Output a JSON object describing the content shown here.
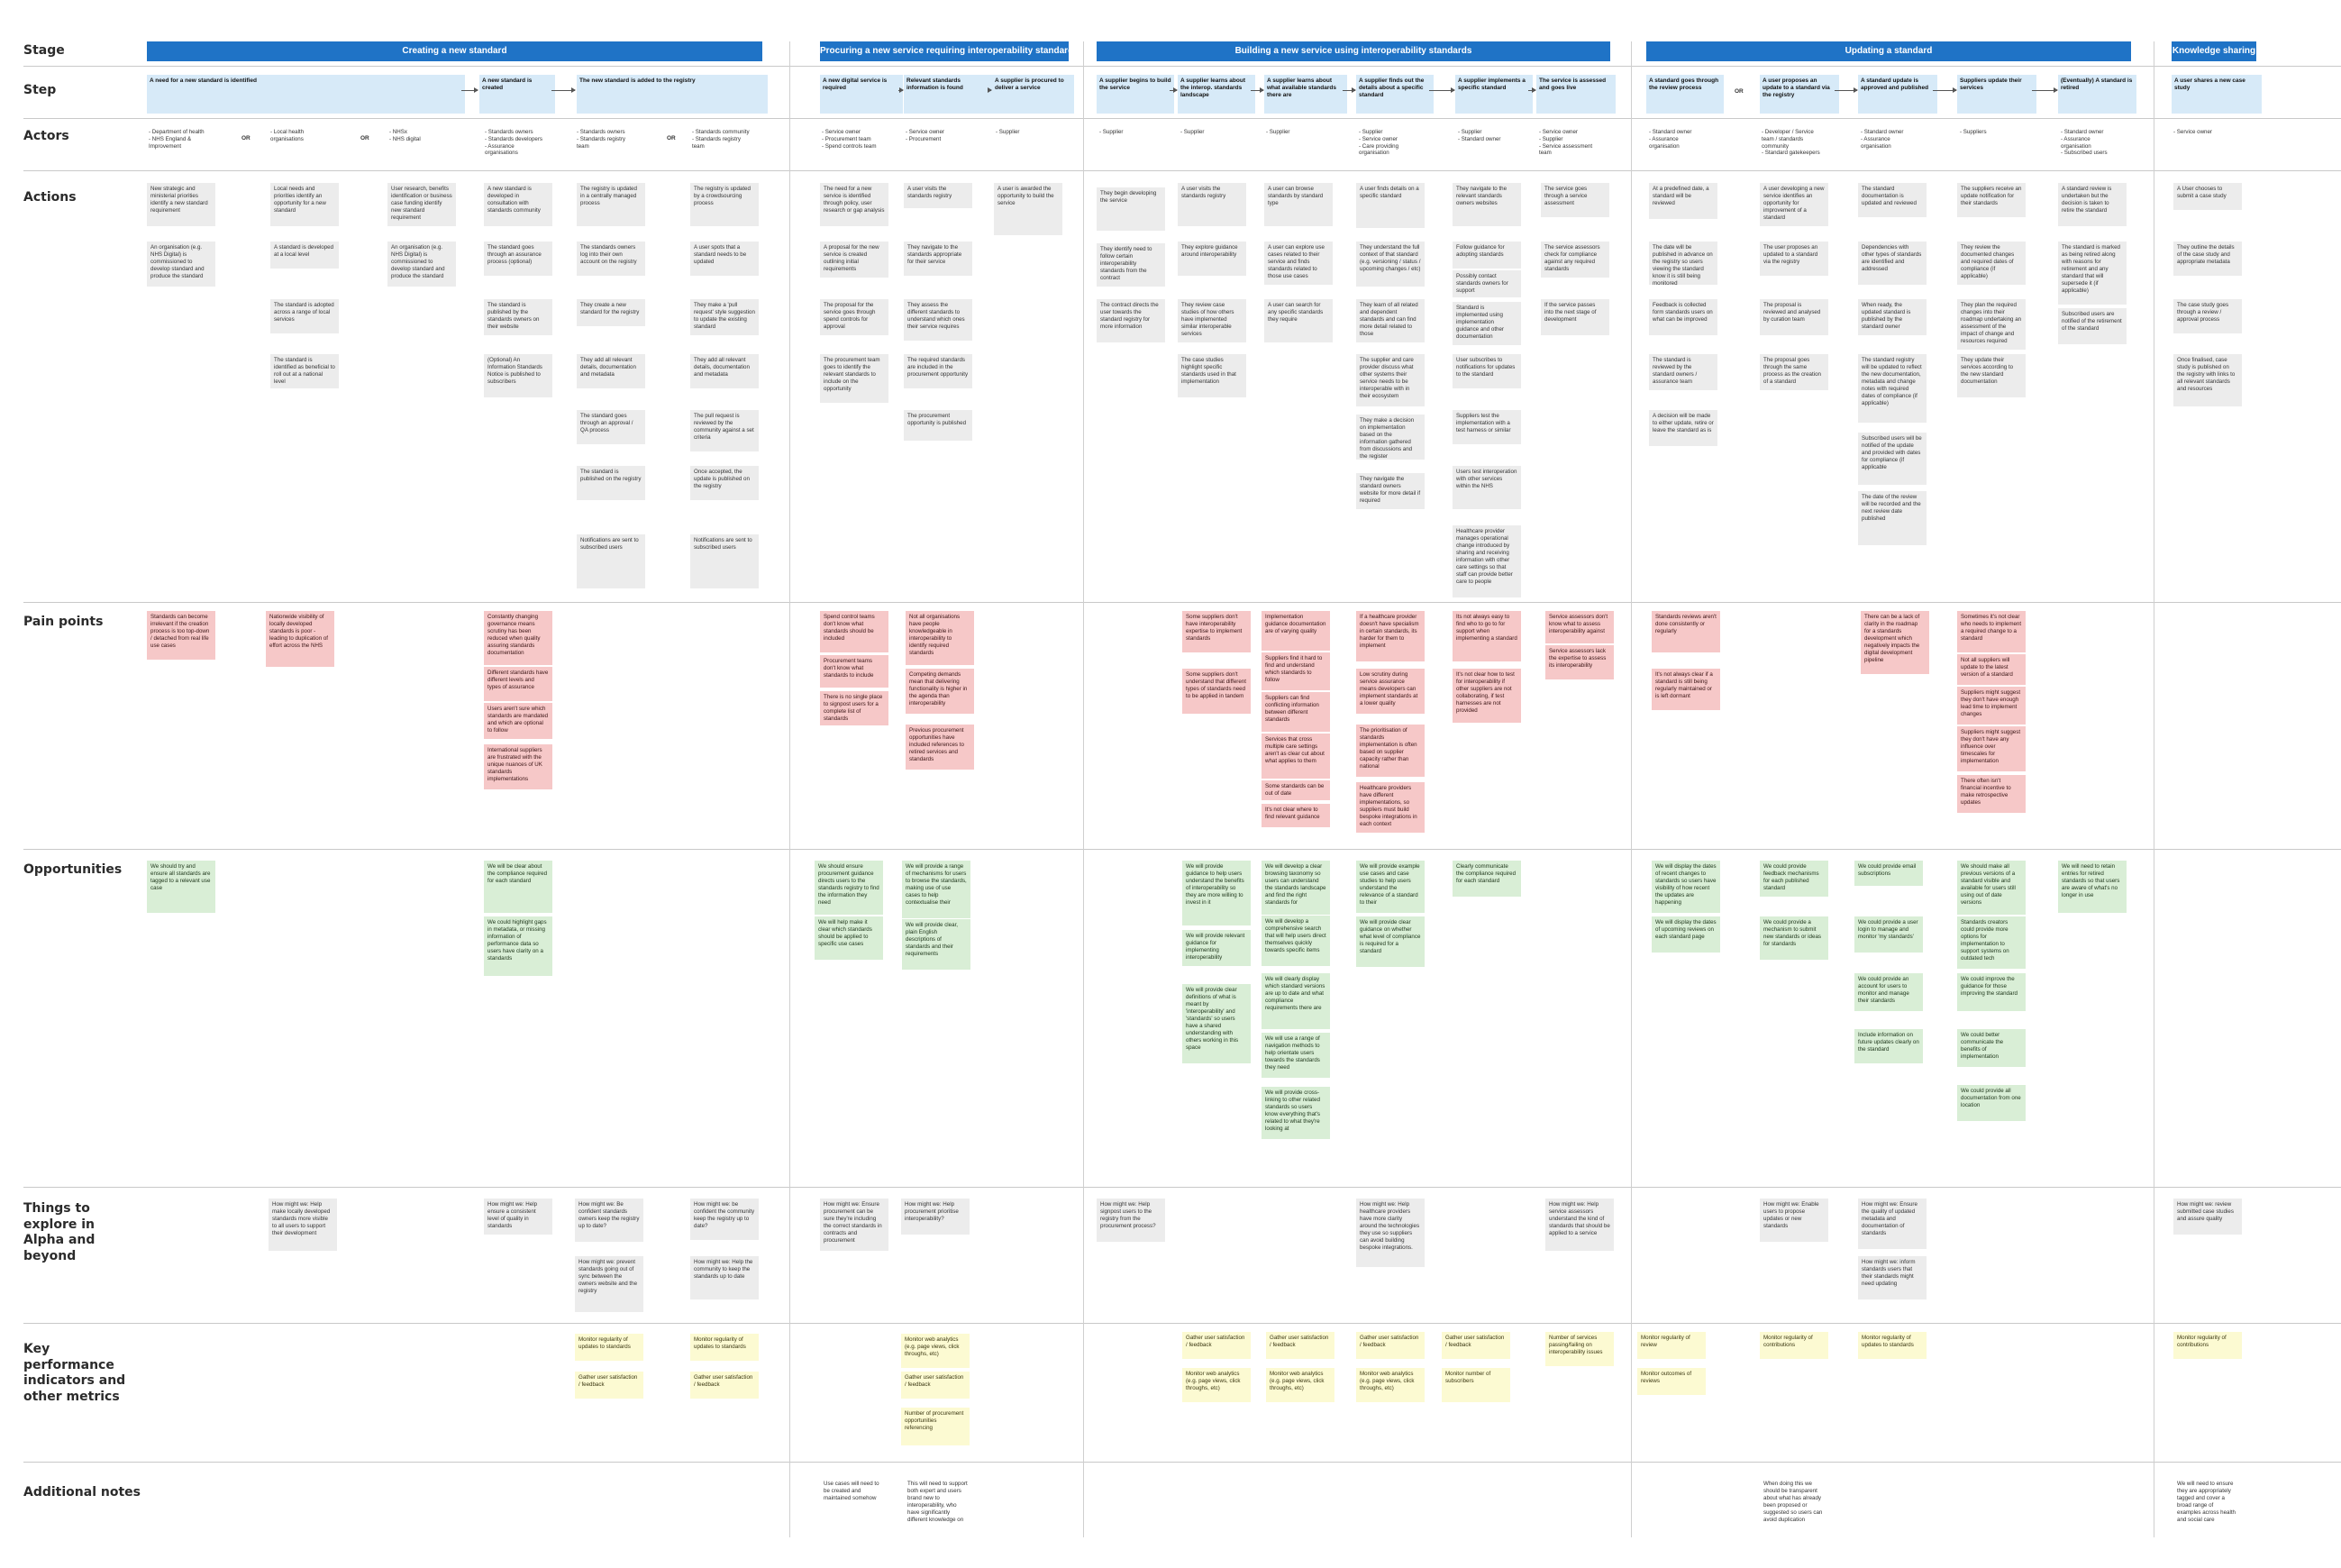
{
  "row_labels": {
    "stage": "Stage",
    "step": "Step",
    "actors": "Actors",
    "actions": "Actions",
    "pain_points": "Pain points",
    "opportunities": "Opportunities",
    "explore": "Things to explore in Alpha and beyond",
    "kpi": "Key performance indicators and other metrics",
    "notes": "Additional notes"
  },
  "stages": [
    "Creating a new standard",
    "Procuring a new service requiring interoperability standards",
    "Building a new service using interoperability standards",
    "Updating a standard",
    "Knowledge sharing"
  ],
  "steps": [
    "A need for a new standard is identified",
    "A new standard is created",
    "The new standard is added to the registry",
    "A new digital service is required",
    "Relevant standards information is found",
    "A supplier is procured to deliver a service",
    "A supplier begins to build the service",
    "A supplier learns about the interop. standards landscape",
    "A supplier learns about what available standards there are",
    "A supplier finds out the details about a specific standard",
    "A supplier implements a specific standard",
    "The service is assessed and goes live",
    "A standard goes through the review process",
    "A user proposes an update to a standard via the registry",
    "A standard update is approved and published",
    "Suppliers update their services",
    "(Eventually) A standard is retired",
    "A user shares a new case study"
  ],
  "or_label": "OR",
  "actors": [
    "- Department of health\n- NHS England &\n  Improvement",
    "- Local health\n  organisations",
    "- NHSx\n- NHS digital",
    "- Standards owners\n- Standards developers\n- Assurance\n  organisations",
    "- Standards owners\n- Standards registry\n  team",
    "- Standards community\n- Standards registry\n  team",
    "- Service owner\n- Procurement team\n- Spend controls team",
    "- Service owner\n- Procurement",
    "- Supplier",
    "- Supplier",
    "- Supplier",
    "- Supplier",
    "- Supplier\n- Service owner\n- Care providing\n  organisation",
    "- Supplier\n- Standard owner",
    "- Service owner\n- Supplier\n- Service assessment\n  team",
    "- Standard owner\n- Assurance\n  organisation",
    "- Developer / Service\n  team / standards\n  community\n- Standard gatekeepers",
    "- Standard owner\n- Assurance\n  organisation",
    "- Suppliers",
    "- Standard owner\n- Assurance\n  organisation\n- Subscribed users",
    "- Service owner"
  ],
  "actions": [
    "New strategic and ministerial priorities identify a new standard requirement",
    "An organisation (e.g. NHS Digital) is commissioned to develop standard and produce the standard",
    "Local needs and priorities identify an opportunity for a new standard",
    "A standard is developed at a local level",
    "The standard is adopted across a range of local services",
    "The standard is identified as beneficial to roll out at a national level",
    "User research, benefits identification or business case funding identify new standard requirement",
    "An organisation (e.g. NHS Digital) is commissioned to develop standard and produce the standard",
    "A new standard is developed in consultation with standards community",
    "The standard goes through an assurance process (optional)",
    "The standard is published by the standards owners on their website",
    "(Optional) An Information Standards Notice is published to subscribers",
    "The registry is updated in a centrally managed process",
    "The standards owners log into their own account on the registry",
    "They create a new standard for the registry",
    "They add all relevant details, documentation and metadata",
    "The standard goes through an approval / QA process",
    "The standard is published on the registry",
    "Notifications are sent to subscribed users",
    "The registry is updated by a crowdsourcing process",
    "A user spots that a standard needs to be updated",
    "They make a 'pull request' style suggestion to update the existing standard",
    "They add all relevant details, documentation and metadata",
    "The pull request is reviewed by the community against a set criteria",
    "Once accepted, the update is published on the registry",
    "Notifications are sent to subscribed users",
    "The need for a new service is identified through policy, user research or gap analysis",
    "A proposal for the new service is created outlining initial requirements",
    "The proposal for the service goes through spend controls for approval",
    "The procurement team goes to identify the relevant standards to include on the opportunity",
    "A user visits the standards registry",
    "They navigate to the standards appropriate for their service",
    "They assess the different standards to understand which ones their service requires",
    "The required standards are included in the procurement opportunity",
    "The procurement opportunity is published",
    "A user is awarded the opportunity to build the service",
    "They begin developing the service",
    "They identify need to follow certain interoperability standards from the contract",
    "The contract directs the user towards the standard registry for more information",
    "A user visits the standards registry",
    "They explore guidance around interoperability",
    "They review case studies of how others have implemented similar interoperable services",
    "The case studies highlight specific standards used in that implementation",
    "A user can browse standards by standard type",
    "A user can explore use cases related to their service and finds standards related to those use cases",
    "A user can search for any specific standards they require",
    "A user finds details on a specific standard",
    "They understand the full context of that standard (e.g. versioning / status / upcoming changes / etc)",
    "They learn of all related and dependent standards and can find more detail related to those",
    "The supplier and care provider discuss what other systems their service needs to be interoperable with in their ecosystem",
    "They make a decision on implementation based on the information gathered from discussions and the register",
    "They navigate the standard owners website for more detail if required",
    "They navigate to the relevant standards owners websites",
    "Follow guidance for adopting standards",
    "Possibly contact standards owners for support",
    "Standard is implemented using implementation guidance and other documentation",
    "User subscribes to notifications for updates to the standard",
    "Suppliers test the implementation with a test harness or similar",
    "Users test interoperation with other services within the NHS",
    "Healthcare provider manages operational change introduced by sharing and receiving information with other care settings so that staff can provide better care to people",
    "The service goes through a service assessment",
    "The service assessors check for compliance against any required standards",
    "If the service passes into the next stage of development",
    "At a predefined date, a standard will be reviewed",
    "The date will be published in advance on the registry so users viewing the standard know it is still being monitored",
    "Feedback is collected form standards users on what can be improved",
    "The standard is reviewed by the standard owners / assurance team",
    "A decision will be made to either update, retire or leave the standard as is",
    "A user developing a new service identifies an opportunity for improvement of a standard",
    "The user proposes an updated to a standard via the registry",
    "The proposal is reviewed and analysed by curation team",
    "The proposal goes through the same process as the creation of a standard",
    "The standard documentation is updated and reviewed",
    "Dependencies with other types of standards are identified and addressed",
    "When ready, the updated standard is published by the standard owner",
    "The standard registry will be updated to reflect the new documentation, metadata and change notes with required dates of compliance (if applicable)",
    "Subscribed users will be notified of the update and provided with dates for compliance (if applicable",
    "The date of the review will be recorded and the next review date published",
    "The suppliers receive an update notification for their standards",
    "They review the documented changes and required dates of compliance (if applicable)",
    "They plan the required changes into their roadmap undertaking an assessment of the impact of change and resources required",
    "They update their services according to the new standard documentation",
    "A standard review is undertaken but the decision is taken to retire the standard",
    "The standard is marked as being retired along with reasons for retirement and any standard that will supersede it (if applicable)",
    "Subscribed users are notified of the retirement of the standard",
    "A User chooses to submit a case study",
    "They outline the details of the case study and appropriate metadata",
    "The case study goes through a review / approval process",
    "Once finalised, case study is published on the registry with links to all relevant standards and resources"
  ],
  "pain_points": [
    "Standards can become irrelevant if the creation process is too top-down / detached from real life use cases",
    "Nationwide visibility of locally developed standards is poor - leading to duplication of effort across the NHS",
    "Constantly changing governance means scrutiny has been reduced when quality assuring standards documentation",
    "Different standards have different levels and types of assurance",
    "Users aren't sure which standards are mandated and which are optional to follow",
    "International suppliers are frustrated with the unique nuances of UK standards implementations",
    "Spend control teams don't know what standards should be included",
    "Procurement teams don't know what standards to include",
    "There is no single place to signpost users for a complete list of standards",
    "Not all organisations have people knowledgeable in interoperability to identify required standards",
    "Competing demands mean that delivering functionality is higher in the agenda than interoperability",
    "Previous procurement opportunities have included references to retired services and standards",
    "Some suppliers don't have interoperability expertise to implement standards",
    "Some suppliers don't understand that different types of standards need to be applied in tandem",
    "Implementation guidance documentation are of varying quality",
    "Suppliers find it hard to find and understand which standards to follow",
    "Suppliers can find conflicting information between different standards",
    "Services that cross multiple care settings aren't as clear cut about what applies to them",
    "Some standards can be out of date",
    "It's not clear where to find relevant guidance",
    "If a healthcare provider doesn't have specialism in certain standards, its harder for them to implement",
    "Low scrutiny during service assurance means developers can implement standards at a lower quality",
    "The prioritisation of standards implementation is often based on supplier capacity rather than national",
    "Healthcare providers have different implementations, so suppliers must build bespoke integrations in each context",
    "Its not always easy to find who to go to for support when implementing a standard",
    "It's not clear how to test for interoperability if other suppliers are not collaborating, if test harnesses are not provided",
    "Service assessors don't know what to assess interoperability against",
    "Service assessors lack the expertise to assess its interoperability",
    "Standards reviews aren't done consistently or regularly",
    "It's not always clear if a standard is still being regularly maintained or is left dormant",
    "There can be a lack of clarity in the roadmap for a standards development which negatively impacts the digital development pipeline",
    "Sometimes it's not clear who needs to implement a required change to a standard",
    "Not all suppliers will update to the latest version of a standard",
    "Suppliers might suggest they don't have enough lead time to implement changes",
    "Suppliers might suggest they don't have any influence over timescales for implementation",
    "There often isn't financial incentive to make retrospective updates"
  ],
  "opportunities": [
    "We should try and ensure all standards are tagged to a relevant use case",
    "We will be clear about the compliance required for each standard",
    "We could highlight gaps in metadata, or missing information of performance data so users have clarity on a standards",
    "We should ensure procurement guidance directs users to the standards registry to find the information they need",
    "We will help make it clear which standards should be applied to specific use cases",
    "We will provide a range of mechanisms for users to browse the standards, making use of use cases to help contextualise their",
    "We will provide clear, plain English descriptions of standards and their requirements",
    "We will provide guidance to help users understand the benefits of interoperability so they are more willing to invest in it",
    "We will provide relevant guidance for implementing interoperability",
    "We will provide clear definitions of what is meant by 'interoperability' and 'standards' so users have a shared understanding with others working in this space",
    "We will develop a clear browsing taxonomy so users can understand the standards landscape and find the right standards for",
    "We will develop a comprehensive search that will help users direct themselves quickly towards specific items",
    "We will clearly display which standard versions are up to date and what compliance requirements there are",
    "We will use a range of navigation methods to help orientate users towards the standards they need",
    "We will provide cross-linking to other related standards so users know everything that's related to what they're looking at",
    "We will provide example use cases and case studies to help users understand the relevance of a standard to their",
    "We will provide clear guidance on whether what level of compliance is required for a standard",
    "Clearly communicate the compliance required for each standard",
    "We will display the dates of recent changes to standards so users have visibility of how recent the updates are happening",
    "We will display the dates of upcoming reviews on each standard page",
    "We could provide feedback mechanisms for each published standard",
    "We could provide a mechanism to submit new standards or ideas for standards",
    "We could provide email subscriptions",
    "We could provide a user login to manage and monitor 'my standards'",
    "We could provide an account for users to monitor and manage their standards",
    "Include information on future updates clearly on the standard",
    "We should make all previous versions of a standard visible and available for users still using out of date versions",
    "Standards creators could provide more options for implementation to support systems on outdated tech",
    "We could improve the guidance for those improving the standard",
    "We could better communicate the benefits of implementation",
    "We could provide all documentation from one location",
    "We will need to retain entries for retired standards so that users are aware of what's no longer in use"
  ],
  "explore": [
    "How might we: Help make locally developed standards more visible to all users to support their development",
    "How might we: Help ensure a consistent level of quality in standards",
    "How might we: Be confident standards owners keep the registry up to date?",
    "How might we: prevent standards going out of sync between the owners website and the registry",
    "How might we: be confident the community keep the registry up to date?",
    "How might we: Help the community to keep the standards up to date",
    "How might we: Ensure procurement can be sure they're including the correct standards in contracts and procurement",
    "How might we: Help procurement prioritise interoperability?",
    "How might we: Help signpost users to the registry from the procurement process?",
    "How might we: Help healthcare providers have more clarity around the technologies they use so suppliers can avoid building bespoke integrations.",
    "How might we: Help service assessors understand the kind of standards that should be applied to a service",
    "How might we: Enable users to propose updates or new standards",
    "How might we: Ensure the quality of updated metadata and documentation of standards",
    "How might we: inform standards users that their standards might need updating",
    "How might we: review submitted case studies and assure quality"
  ],
  "kpis": [
    "Monitor regularity of updates to standards",
    "Gather user satisfaction / feedback",
    "Monitor regularity of updates to standards",
    "Gather user satisfaction / feedback",
    "Monitor web analytics (e.g. page views, click throughs, etc)",
    "Gather user satisfaction / feedback",
    "Number of procurement opportunities referencing",
    "Gather user satisfaction / feedback",
    "Monitor web analytics (e.g. page views, click throughs, etc)",
    "Gather user satisfaction / feedback",
    "Monitor web analytics (e.g. page views, click throughs, etc)",
    "Gather user satisfaction / feedback",
    "Monitor web analytics (e.g. page views, click throughs, etc)",
    "Gather user satisfaction / feedback",
    "Monitor number of subscribers",
    "Number of services passing/failing on interoperability issues",
    "Monitor regularity of review",
    "Monitor outcomes of reviews",
    "Monitor regularity of contributions",
    "Monitor regularity of updates to standards",
    "Monitor regularity of contributions"
  ],
  "notes": [
    "Use cases will need to be created and maintained somehow",
    "This will need to support both expert and users brand new to interoperability, who have significantly different knowledge on",
    "When doing this we should be transparent about what has already been proposed or suggested so users can avoid duplication",
    "We will need to ensure they are appropriately tagged and cover a broad range of examples across health and social care"
  ]
}
